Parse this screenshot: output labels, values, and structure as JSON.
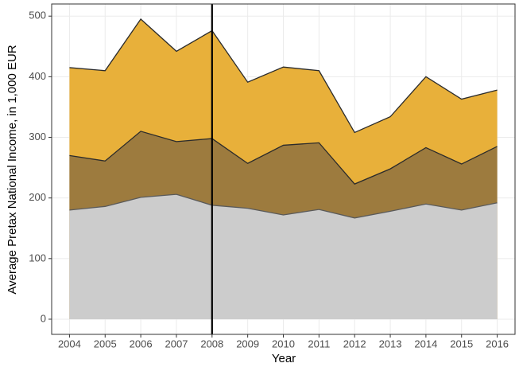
{
  "chart_data": {
    "type": "area",
    "x_label": "Year",
    "y_label": "Average Pretax National Income, in 1,000 EUR",
    "x": [
      2004,
      2005,
      2006,
      2007,
      2008,
      2009,
      2010,
      2011,
      2012,
      2013,
      2014,
      2015,
      2016
    ],
    "series": [
      {
        "color": "#e8b03a",
        "line_color": "#2b2b2b",
        "values": [
          415,
          410,
          495,
          442,
          476,
          391,
          416,
          410,
          308,
          334,
          400,
          363,
          378
        ]
      },
      {
        "color": "#9d7b3e",
        "line_color": "#2b2b2b",
        "values": [
          270,
          261,
          310,
          293,
          298,
          257,
          287,
          291,
          223,
          248,
          283,
          256,
          285
        ]
      },
      {
        "color": "#cccccc",
        "line_color": "#5a5a5a",
        "values": [
          180,
          186,
          201,
          206,
          188,
          183,
          172,
          181,
          167,
          178,
          190,
          180,
          192
        ]
      }
    ],
    "xlim": [
      2003.5,
      2016.5
    ],
    "xticks": [
      2004,
      2005,
      2006,
      2007,
      2008,
      2009,
      2010,
      2011,
      2012,
      2013,
      2014,
      2015,
      2016
    ],
    "ylim": [
      -25,
      520
    ],
    "yticks": [
      0,
      100,
      200,
      300,
      400,
      500
    ],
    "grid": true,
    "vline": 2008
  }
}
